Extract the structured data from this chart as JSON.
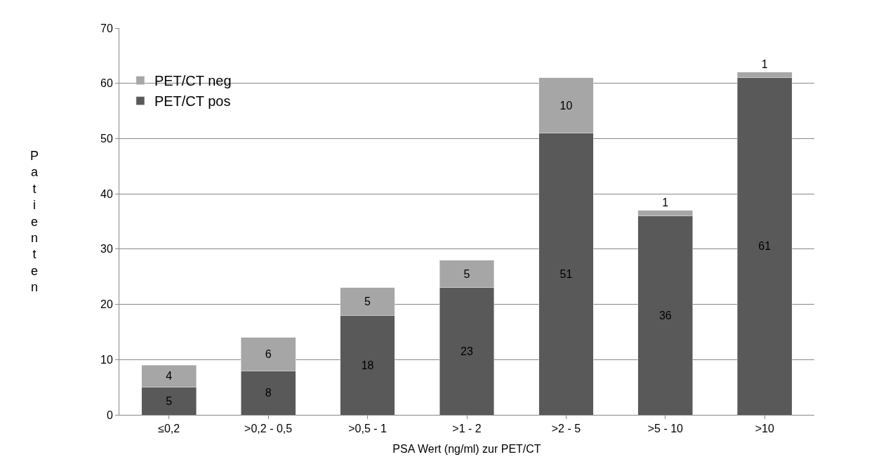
{
  "chart_data": {
    "type": "bar",
    "stacked": true,
    "xlabel": "PSA Wert (ng/ml) zur PET/CT",
    "ylabel": "Patienten",
    "categories": [
      "≤0,2",
      ">0,2 - 0,5",
      ">0,5 - 1",
      ">1 - 2",
      ">2 - 5",
      ">5 - 10",
      ">10"
    ],
    "series": [
      {
        "name": "PET/CT pos",
        "color": "#595959",
        "values": [
          5,
          8,
          18,
          23,
          51,
          36,
          61
        ]
      },
      {
        "name": "PET/CT neg",
        "color": "#a6a6a6",
        "values": [
          4,
          6,
          5,
          5,
          10,
          1,
          1
        ]
      }
    ],
    "ylim": [
      0,
      70
    ],
    "yticks": [
      0,
      10,
      20,
      30,
      40,
      50,
      60,
      70
    ],
    "grid": "y",
    "legend": "top left",
    "data_labels": true
  }
}
